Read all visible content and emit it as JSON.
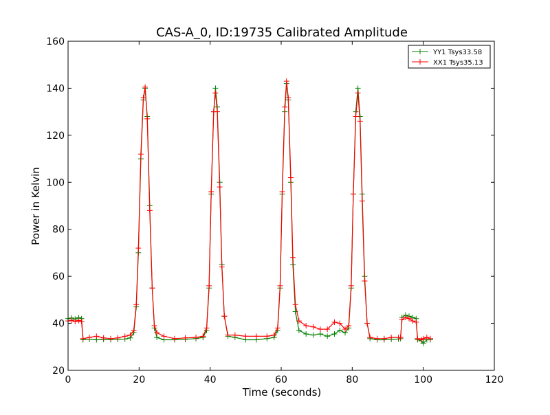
{
  "chart_data": {
    "type": "line",
    "title": "CAS-A_0, ID:19735 Calibrated Amplitude",
    "xlabel": "Time (seconds)",
    "ylabel": "Power in Kelvin",
    "xlim": [
      0,
      120
    ],
    "ylim": [
      20,
      160
    ],
    "xticks": [
      "0",
      "20",
      "40",
      "60",
      "80",
      "100",
      "120"
    ],
    "yticks": [
      "20",
      "40",
      "60",
      "80",
      "100",
      "120",
      "140",
      "160"
    ],
    "grid": false,
    "legend_position": "top-right",
    "series": [
      {
        "name": "YY1 Tsys33.58",
        "color": "#008000",
        "marker": "+",
        "points": [
          [
            0.0,
            42.0
          ],
          [
            1.0,
            42.3
          ],
          [
            2.0,
            41.8
          ],
          [
            3.0,
            42.4
          ],
          [
            3.8,
            42.0
          ],
          [
            4.2,
            33.0
          ],
          [
            6.0,
            33.2
          ],
          [
            8.0,
            33.0
          ],
          [
            10.0,
            33.1
          ],
          [
            12.0,
            33.0
          ],
          [
            14.0,
            33.2
          ],
          [
            16.0,
            33.3
          ],
          [
            17.5,
            33.8
          ],
          [
            18.5,
            36.0
          ],
          [
            19.2,
            47.0
          ],
          [
            19.8,
            70.0
          ],
          [
            20.5,
            110.0
          ],
          [
            21.2,
            135.0
          ],
          [
            21.7,
            140.0
          ],
          [
            22.3,
            128.0
          ],
          [
            23.0,
            90.0
          ],
          [
            23.7,
            55.0
          ],
          [
            24.3,
            38.0
          ],
          [
            25.0,
            34.0
          ],
          [
            27.0,
            33.0
          ],
          [
            30.0,
            33.0
          ],
          [
            33.0,
            33.2
          ],
          [
            36.0,
            33.5
          ],
          [
            38.0,
            34.0
          ],
          [
            39.0,
            37.0
          ],
          [
            39.7,
            55.0
          ],
          [
            40.3,
            95.0
          ],
          [
            41.0,
            130.0
          ],
          [
            41.5,
            140.0
          ],
          [
            42.0,
            132.0
          ],
          [
            42.7,
            100.0
          ],
          [
            43.3,
            65.0
          ],
          [
            44.0,
            43.0
          ],
          [
            45.0,
            34.5
          ],
          [
            47.0,
            34.0
          ],
          [
            50.0,
            33.0
          ],
          [
            53.0,
            33.0
          ],
          [
            56.0,
            33.5
          ],
          [
            58.0,
            34.0
          ],
          [
            59.0,
            37.0
          ],
          [
            59.7,
            55.0
          ],
          [
            60.3,
            95.0
          ],
          [
            61.0,
            130.0
          ],
          [
            61.5,
            142.0
          ],
          [
            62.0,
            135.0
          ],
          [
            62.7,
            100.0
          ],
          [
            63.3,
            65.0
          ],
          [
            64.0,
            45.0
          ],
          [
            65.0,
            37.0
          ],
          [
            67.0,
            35.5
          ],
          [
            69.0,
            35.0
          ],
          [
            71.0,
            35.5
          ],
          [
            73.0,
            34.5
          ],
          [
            75.0,
            35.5
          ],
          [
            76.5,
            37.0
          ],
          [
            78.0,
            36.0
          ],
          [
            79.0,
            38.0
          ],
          [
            79.7,
            55.0
          ],
          [
            80.3,
            95.0
          ],
          [
            81.0,
            130.0
          ],
          [
            81.6,
            140.0
          ],
          [
            82.2,
            128.0
          ],
          [
            82.8,
            95.0
          ],
          [
            83.5,
            60.0
          ],
          [
            84.2,
            40.0
          ],
          [
            85.0,
            33.5
          ],
          [
            87.0,
            33.0
          ],
          [
            89.0,
            33.0
          ],
          [
            91.0,
            33.2
          ],
          [
            93.0,
            33.3
          ],
          [
            93.6,
            33.5
          ],
          [
            94.0,
            42.5
          ],
          [
            95.0,
            43.5
          ],
          [
            96.0,
            43.0
          ],
          [
            97.0,
            42.5
          ],
          [
            98.0,
            42.0
          ],
          [
            98.4,
            33.0
          ],
          [
            99.5,
            32.5
          ],
          [
            100.0,
            31.5
          ],
          [
            101.0,
            33.0
          ],
          [
            102.0,
            33.0
          ]
        ]
      },
      {
        "name": "XX1 Tsys35.13",
        "color": "#ff0000",
        "marker": "+",
        "points": [
          [
            0.0,
            41.0
          ],
          [
            1.0,
            41.3
          ],
          [
            2.0,
            40.8
          ],
          [
            3.0,
            41.2
          ],
          [
            3.8,
            40.8
          ],
          [
            4.2,
            33.5
          ],
          [
            6.0,
            34.0
          ],
          [
            8.0,
            34.5
          ],
          [
            10.0,
            33.8
          ],
          [
            12.0,
            33.5
          ],
          [
            14.0,
            33.8
          ],
          [
            16.0,
            34.5
          ],
          [
            17.5,
            35.0
          ],
          [
            18.5,
            37.0
          ],
          [
            19.2,
            48.0
          ],
          [
            19.8,
            72.0
          ],
          [
            20.5,
            112.0
          ],
          [
            21.2,
            136.0
          ],
          [
            21.7,
            140.5
          ],
          [
            22.3,
            127.0
          ],
          [
            23.0,
            88.0
          ],
          [
            23.7,
            55.0
          ],
          [
            24.3,
            39.0
          ],
          [
            25.0,
            36.0
          ],
          [
            27.0,
            34.5
          ],
          [
            30.0,
            33.5
          ],
          [
            33.0,
            33.8
          ],
          [
            36.0,
            34.0
          ],
          [
            38.0,
            34.5
          ],
          [
            39.0,
            38.0
          ],
          [
            39.7,
            56.0
          ],
          [
            40.3,
            96.0
          ],
          [
            41.0,
            130.0
          ],
          [
            41.5,
            138.0
          ],
          [
            42.0,
            130.0
          ],
          [
            42.7,
            98.0
          ],
          [
            43.3,
            64.0
          ],
          [
            44.0,
            43.0
          ],
          [
            45.0,
            35.0
          ],
          [
            47.0,
            35.0
          ],
          [
            50.0,
            34.5
          ],
          [
            53.0,
            34.5
          ],
          [
            56.0,
            34.5
          ],
          [
            58.0,
            35.0
          ],
          [
            59.0,
            38.0
          ],
          [
            59.7,
            56.0
          ],
          [
            60.3,
            96.0
          ],
          [
            61.0,
            132.0
          ],
          [
            61.5,
            143.0
          ],
          [
            62.0,
            136.0
          ],
          [
            62.7,
            102.0
          ],
          [
            63.3,
            68.0
          ],
          [
            64.0,
            48.0
          ],
          [
            65.0,
            41.0
          ],
          [
            67.0,
            39.0
          ],
          [
            69.0,
            38.5
          ],
          [
            71.0,
            37.5
          ],
          [
            73.0,
            37.5
          ],
          [
            75.0,
            40.5
          ],
          [
            76.5,
            40.0
          ],
          [
            78.0,
            37.5
          ],
          [
            79.0,
            39.0
          ],
          [
            79.7,
            56.0
          ],
          [
            80.3,
            95.0
          ],
          [
            81.0,
            128.0
          ],
          [
            81.6,
            138.0
          ],
          [
            82.2,
            126.0
          ],
          [
            82.8,
            92.0
          ],
          [
            83.5,
            58.0
          ],
          [
            84.2,
            40.0
          ],
          [
            85.0,
            34.0
          ],
          [
            87.0,
            33.5
          ],
          [
            89.0,
            33.5
          ],
          [
            91.0,
            34.0
          ],
          [
            93.0,
            34.0
          ],
          [
            93.6,
            34.0
          ],
          [
            94.0,
            41.5
          ],
          [
            95.0,
            42.5
          ],
          [
            96.0,
            42.0
          ],
          [
            97.0,
            41.0
          ],
          [
            98.0,
            40.5
          ],
          [
            98.4,
            33.5
          ],
          [
            99.5,
            33.0
          ],
          [
            100.0,
            33.5
          ],
          [
            101.0,
            34.0
          ],
          [
            102.0,
            33.5
          ]
        ]
      }
    ]
  }
}
